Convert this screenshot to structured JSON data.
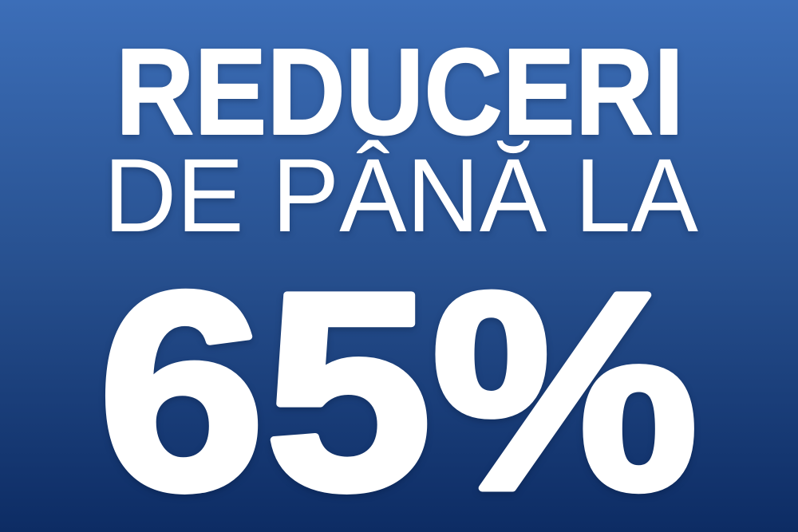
{
  "banner": {
    "line1": "REDUCERI",
    "line2": "DE PÂNĂ LA",
    "line3": "65%",
    "colors": {
      "gradient_top": "#3c6eb8",
      "gradient_middle": "#27508f",
      "gradient_bottom": "#0d2c64",
      "text": "#ffffff"
    }
  }
}
